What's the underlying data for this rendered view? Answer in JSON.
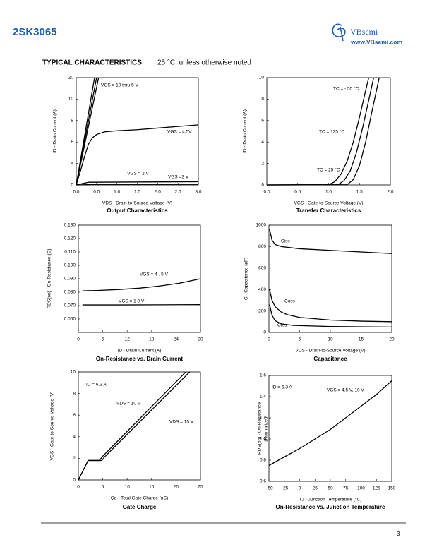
{
  "header": {
    "part_number": "2SK3065",
    "logo": "VBsemi",
    "website": "www.VBsemi.com"
  },
  "section": {
    "title": "TYPICAL CHARACTERISTICS",
    "subtitle": "25 °C, unless otherwise noted"
  },
  "page_number": "3",
  "chart_data": [
    {
      "type": "line",
      "title": "Output Characteristics",
      "x_label": "VDS - Drain-to-Source Voltage (V)",
      "y_label": "ID - Drain Current (A)",
      "xlim": [
        0,
        3
      ],
      "ylim": [
        0,
        20
      ],
      "y_scale": "tick-spaced",
      "grid": false,
      "color": "#000000",
      "xticks": [
        {
          "value": 0,
          "label": "0.0"
        },
        0.5,
        {
          "value": 1,
          "label": "1.0"
        },
        1.5,
        {
          "value": 2,
          "label": "2.0"
        },
        2.5,
        {
          "value": 3,
          "label": "3.0"
        }
      ],
      "yticks": [
        0,
        4,
        6,
        8,
        10,
        20
      ],
      "annotations": [
        "VGS = 10 thru 5 V",
        "VGS = 4.5V",
        "VGS = 2 V",
        "VGS =3 V"
      ],
      "series": [
        {
          "x": [
            0,
            0.09,
            0.18,
            0.27,
            0.36,
            0.45
          ],
          "values": [
            0,
            4,
            6,
            8,
            10,
            20
          ]
        },
        {
          "x": [
            0,
            0.1,
            0.2,
            0.3,
            0.4,
            0.5
          ],
          "values": [
            0,
            4,
            6,
            8,
            10,
            20
          ]
        },
        {
          "x": [
            0,
            0.11,
            0.22,
            0.33,
            0.44,
            0.55
          ],
          "values": [
            0,
            4,
            6,
            8,
            10,
            20
          ]
        },
        {
          "x": [
            0,
            0.1,
            0.2,
            0.3,
            0.4,
            0.5,
            0.7,
            1,
            1.5,
            2,
            2.5,
            3
          ],
          "values": [
            0,
            2.5,
            4.6,
            5.8,
            6.4,
            6.7,
            6.95,
            7.05,
            7.15,
            7.3,
            7.45,
            7.6
          ]
        },
        {
          "x": [
            0,
            0.3,
            3
          ],
          "values": [
            0,
            0.5,
            0.6
          ]
        },
        {
          "x": [
            0,
            0.5,
            3
          ],
          "values": [
            0,
            0.1,
            0.15
          ]
        }
      ]
    },
    {
      "type": "line",
      "title": "Transfer Characteristics",
      "x_label": "VGS - Gate-to-Source Voltage (V)",
      "y_label": "ID - Drain Current (A)",
      "xlim": [
        0,
        2
      ],
      "ylim": [
        0,
        10
      ],
      "grid": false,
      "color": "#000000",
      "xticks": [
        {
          "value": 0,
          "label": "0.0"
        },
        0.5,
        {
          "value": 1,
          "label": "1.0"
        },
        1.5,
        {
          "value": 2,
          "label": "2.0"
        }
      ],
      "yticks": [
        0,
        2,
        4,
        6,
        8,
        10
      ],
      "annotations": [
        "TC = - 55 °C",
        "TC = 125 °C",
        "TC = 25 °C"
      ],
      "series": [
        {
          "x": [
            0,
            1.0,
            1.1,
            1.2,
            1.3,
            1.4,
            1.5,
            1.6,
            1.65
          ],
          "values": [
            0,
            0.02,
            0.3,
            1.0,
            2.2,
            4.0,
            6.3,
            8.8,
            10
          ]
        },
        {
          "x": [
            0,
            1.15,
            1.25,
            1.35,
            1.45,
            1.55,
            1.65,
            1.73
          ],
          "values": [
            0,
            0.02,
            0.4,
            1.3,
            3.0,
            5.3,
            7.9,
            10
          ]
        },
        {
          "x": [
            0,
            1.3,
            1.4,
            1.5,
            1.6,
            1.7,
            1.82
          ],
          "values": [
            0,
            0.02,
            0.5,
            1.8,
            4.0,
            6.8,
            10
          ]
        }
      ]
    },
    {
      "type": "line",
      "title": "On-Resistance vs. Drain Current",
      "x_label": "ID - Drain Current (A)",
      "y_label": "RDS(on) - On-Resistance (Ω)",
      "xlim": [
        0,
        30
      ],
      "ylim": [
        0.05,
        0.13
      ],
      "grid": false,
      "color": "#000000",
      "xticks": [
        0,
        6,
        12,
        18,
        24,
        30
      ],
      "yticks": [
        {
          "value": 0.06,
          "label": "0.060"
        },
        {
          "value": 0.07,
          "label": "0.070"
        },
        {
          "value": 0.08,
          "label": "0.080"
        },
        {
          "value": 0.09,
          "label": "0.090"
        },
        {
          "value": 0.1,
          "label": "0.100"
        },
        {
          "value": 0.11,
          "label": "0.110"
        },
        {
          "value": 0.12,
          "label": "0.120"
        },
        {
          "value": 0.13,
          "label": "0.130"
        }
      ],
      "annotations": [
        "VGS = 4 . 5 V",
        "VGS = 1 0 V"
      ],
      "series": [
        {
          "x": [
            1,
            5,
            10,
            15,
            20,
            25,
            30
          ],
          "values": [
            0.081,
            0.0813,
            0.082,
            0.083,
            0.0846,
            0.0868,
            0.09
          ]
        },
        {
          "x": [
            1,
            10,
            20,
            30
          ],
          "values": [
            0.0705,
            0.0705,
            0.0706,
            0.0707
          ]
        }
      ]
    },
    {
      "type": "line",
      "title": "Capacitance",
      "x_label": "VDS - Drain-to-Source Voltage (V)",
      "y_label": "C - Capacitance (pF)",
      "xlim": [
        0,
        20
      ],
      "ylim": [
        0,
        1000
      ],
      "grid": false,
      "color": "#000000",
      "xticks": [
        0,
        5,
        10,
        15,
        20
      ],
      "yticks": [
        0,
        200,
        400,
        600,
        800,
        1000
      ],
      "annotations": [
        "Ciss",
        "Coss",
        "Crss"
      ],
      "series": [
        {
          "x": [
            0.1,
            0.5,
            1,
            2,
            5,
            10,
            15,
            20
          ],
          "values": [
            960,
            860,
            820,
            800,
            780,
            765,
            750,
            735
          ]
        },
        {
          "x": [
            0.1,
            0.5,
            1,
            2,
            3,
            5,
            10,
            15,
            20
          ],
          "values": [
            400,
            300,
            240,
            190,
            165,
            140,
            115,
            105,
            100
          ]
        },
        {
          "x": [
            0.1,
            0.5,
            1,
            2,
            4,
            10,
            20
          ],
          "values": [
            260,
            160,
            110,
            80,
            65,
            55,
            50
          ]
        }
      ]
    },
    {
      "type": "line",
      "title": "Gate Charge",
      "x_label": "Qg - Total Gate Charge (nC)",
      "y_label": "VGS - Gate-to-Source Voltage (V)",
      "xlim": [
        0,
        25
      ],
      "ylim": [
        0,
        10
      ],
      "grid": false,
      "color": "#000000",
      "xticks": [
        0,
        5,
        10,
        15,
        20,
        25
      ],
      "yticks": [
        0,
        2,
        4,
        6,
        8,
        10
      ],
      "annotations": [
        "ID = 6.3 A",
        "VDS = 10 V",
        "VDS = 15 V"
      ],
      "series": [
        {
          "x": [
            0,
            2,
            4.3,
            5,
            22
          ],
          "values": [
            0,
            1.8,
            1.8,
            2.2,
            10
          ]
        },
        {
          "x": [
            0,
            2,
            4.8,
            5.3,
            22.8
          ],
          "values": [
            0,
            1.8,
            1.8,
            2.1,
            10
          ]
        }
      ]
    },
    {
      "type": "line",
      "title": "On-Resistance vs. Junction Temperature",
      "x_label": "TJ - Junction Temperature (°C)",
      "y_label": "RDS(on) - On-Resistance",
      "y_label_2": "(Normalized)",
      "xlim": [
        -50,
        150
      ],
      "ylim": [
        0.6,
        1.6
      ],
      "grid": false,
      "color": "#000000",
      "xticks": [
        {
          "value": -50,
          "label": "- 50"
        },
        {
          "value": -25,
          "label": "- 25"
        },
        0,
        25,
        50,
        75,
        100,
        125,
        150
      ],
      "yticks": [
        0.6,
        0.8,
        {
          "value": 1,
          "label": "1.0"
        },
        1.2,
        1.4,
        1.6
      ],
      "annotations": [
        "ID = 6.3 A",
        "VGS = 4.5 V, 10 V"
      ],
      "series": [
        {
          "x": [
            -50,
            -25,
            0,
            25,
            50,
            75,
            100,
            125,
            150
          ],
          "values": [
            0.75,
            0.83,
            0.91,
            1.0,
            1.09,
            1.2,
            1.31,
            1.42,
            1.55
          ]
        }
      ]
    }
  ]
}
